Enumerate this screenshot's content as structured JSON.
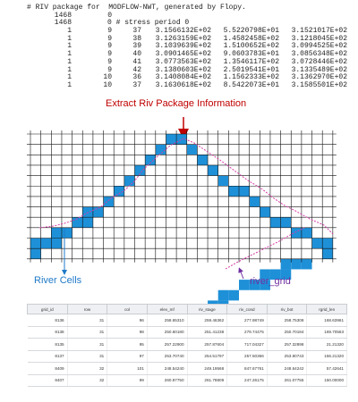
{
  "riv_file": {
    "header": "# RIV package for  MODFLOW-NWT, generated by Flopy.",
    "line2": [
      "1468",
      "0"
    ],
    "line3": [
      "1468",
      "0 # stress period 0"
    ],
    "rows": [
      [
        "1",
        "9",
        "37",
        "3.1566132E+02",
        "5.5220798E+01",
        "3.1521017E+02"
      ],
      [
        "1",
        "9",
        "38",
        "3.1263159E+02",
        "1.4582458E+02",
        "3.1218045E+02"
      ],
      [
        "1",
        "9",
        "39",
        "3.1039639E+02",
        "1.5100652E+02",
        "3.0994525E+02"
      ],
      [
        "1",
        "9",
        "40",
        "3.0901465E+02",
        "9.0603783E+01",
        "3.0856348E+02"
      ],
      [
        "1",
        "9",
        "41",
        "3.0773563E+02",
        "1.3546117E+02",
        "3.0728446E+02"
      ],
      [
        "1",
        "9",
        "42",
        "3.1380603E+02",
        "2.5019541E+01",
        "3.1335489E+02"
      ],
      [
        "1",
        "10",
        "36",
        "3.1408084E+02",
        "1.1562333E+02",
        "3.1362970E+02"
      ],
      [
        "1",
        "10",
        "37",
        "3.1630618E+02",
        "8.5422073E+01",
        "3.1585501E+02"
      ]
    ]
  },
  "labels": {
    "extract": "Extract Riv Package Information",
    "river_cells": "River Cells",
    "river_grid": "river_grid"
  },
  "colors": {
    "river_cell": "#1e90d8",
    "river_line": "#d63ca6",
    "grid_line": "#111111",
    "extract_arrow": "#c00000",
    "river_cells_arrow": "#1f7ac8",
    "river_grid_arrow": "#7030a0"
  },
  "grid": {
    "rows": 12,
    "cols": 29,
    "river_cells": [
      [
        0,
        13
      ],
      [
        0,
        14
      ],
      [
        1,
        12
      ],
      [
        1,
        15
      ],
      [
        2,
        11
      ],
      [
        2,
        16
      ],
      [
        3,
        10
      ],
      [
        3,
        17
      ],
      [
        4,
        9
      ],
      [
        4,
        18
      ],
      [
        5,
        8
      ],
      [
        5,
        19
      ],
      [
        5,
        20
      ],
      [
        6,
        7
      ],
      [
        6,
        21
      ],
      [
        7,
        5
      ],
      [
        7,
        6
      ],
      [
        7,
        22
      ],
      [
        8,
        4
      ],
      [
        8,
        5
      ],
      [
        8,
        23
      ],
      [
        8,
        24
      ],
      [
        9,
        2
      ],
      [
        9,
        3
      ],
      [
        9,
        25
      ],
      [
        9,
        26
      ],
      [
        10,
        0
      ],
      [
        10,
        1
      ],
      [
        10,
        2
      ],
      [
        10,
        27
      ],
      [
        10,
        28
      ],
      [
        11,
        0
      ],
      [
        11,
        28
      ]
    ],
    "river_cells_lower": [
      [
        0,
        24
      ],
      [
        0,
        25
      ],
      [
        0,
        26
      ],
      [
        1,
        22
      ],
      [
        1,
        23
      ],
      [
        1,
        24
      ],
      [
        2,
        20
      ],
      [
        2,
        21
      ],
      [
        2,
        22
      ],
      [
        3,
        18
      ],
      [
        3,
        19
      ],
      [
        4,
        17
      ],
      [
        4,
        18
      ]
    ]
  },
  "table": {
    "columns": [
      "grid_id",
      "row",
      "col",
      "elev_mf",
      "riv_stage",
      "riv_cond",
      "riv_bot",
      "rgrid_len"
    ],
    "rows": [
      [
        "8136",
        "31",
        "96",
        "258.65310",
        "259.46362",
        "277.98749",
        "258.75308",
        "168.63961"
      ],
      [
        "8138",
        "31",
        "98",
        "250.60180",
        "251.41238",
        "279.74475",
        "250.70184",
        "169.70563"
      ],
      [
        "8135",
        "31",
        "95",
        "257.22900",
        "257.87604",
        "717.04327",
        "257.32898",
        "21.21320"
      ],
      [
        "8137",
        "31",
        "97",
        "253.70740",
        "254.51797",
        "257.50366",
        "253.80743",
        "156.21320"
      ],
      [
        "8409",
        "32",
        "101",
        "248.54240",
        "249.19568",
        "847.67761",
        "248.64242",
        "57.42641"
      ],
      [
        "8407",
        "32",
        "99",
        "260.97750",
        "261.78809",
        "247.26175",
        "261.07755",
        "150.00000"
      ]
    ]
  }
}
